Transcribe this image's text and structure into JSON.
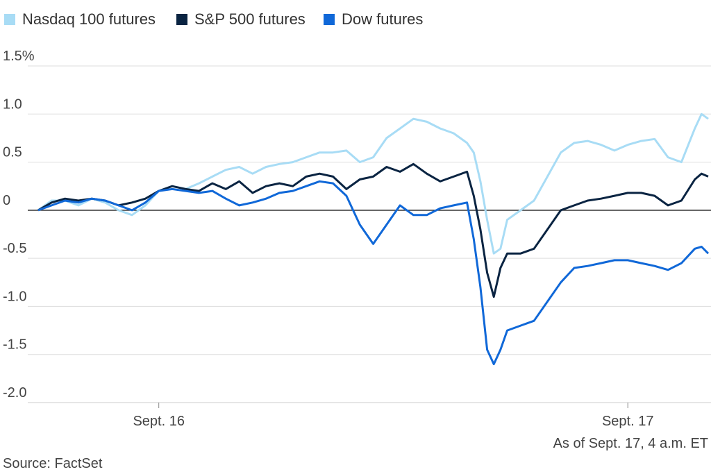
{
  "chart_data": {
    "type": "line",
    "title": "",
    "xlabel": "",
    "ylabel": "",
    "ylim": [
      -2.0,
      1.5
    ],
    "y_ticks": [
      {
        "value": 1.5,
        "label": "1.5%"
      },
      {
        "value": 1.0,
        "label": "1.0"
      },
      {
        "value": 0.5,
        "label": "0.5"
      },
      {
        "value": 0,
        "label": "0"
      },
      {
        "value": -0.5,
        "label": "-0.5"
      },
      {
        "value": -1.0,
        "label": "-1.0"
      },
      {
        "value": -1.5,
        "label": "-1.5"
      },
      {
        "value": -2.0,
        "label": "-2.0"
      }
    ],
    "xlim": [
      0,
      100
    ],
    "x_ticks": [
      {
        "value": 18,
        "label": "Sept. 16"
      },
      {
        "value": 88,
        "label": "Sept. 17"
      }
    ],
    "grid": true,
    "legend_position": "top-left",
    "x": [
      0,
      2,
      4,
      6,
      8,
      10,
      12,
      14,
      16,
      18,
      20,
      22,
      24,
      26,
      28,
      30,
      32,
      34,
      36,
      38,
      40,
      42,
      44,
      46,
      48,
      50,
      52,
      54,
      56,
      58,
      60,
      62,
      64,
      65,
      66,
      67,
      68,
      69,
      70,
      72,
      74,
      76,
      78,
      80,
      82,
      84,
      86,
      88,
      90,
      92,
      94,
      96,
      98,
      99,
      100
    ],
    "series": [
      {
        "name": "Nasdaq 100 futures",
        "color": "#a8dcf5",
        "values": [
          0.0,
          0.1,
          0.1,
          0.05,
          0.12,
          0.08,
          0.0,
          -0.05,
          0.05,
          0.2,
          0.25,
          0.22,
          0.28,
          0.35,
          0.42,
          0.45,
          0.38,
          0.45,
          0.48,
          0.5,
          0.55,
          0.6,
          0.6,
          0.62,
          0.5,
          0.55,
          0.75,
          0.85,
          0.95,
          0.92,
          0.85,
          0.8,
          0.7,
          0.6,
          0.3,
          -0.1,
          -0.45,
          -0.4,
          -0.1,
          0.0,
          0.1,
          0.35,
          0.6,
          0.7,
          0.72,
          0.68,
          0.62,
          0.68,
          0.72,
          0.74,
          0.55,
          0.5,
          0.85,
          1.0,
          0.95
        ]
      },
      {
        "name": "S&P 500 futures",
        "color": "#0a2442",
        "values": [
          0.0,
          0.08,
          0.12,
          0.1,
          0.12,
          0.1,
          0.05,
          0.08,
          0.12,
          0.2,
          0.25,
          0.22,
          0.2,
          0.28,
          0.22,
          0.3,
          0.18,
          0.25,
          0.28,
          0.25,
          0.35,
          0.38,
          0.35,
          0.22,
          0.32,
          0.35,
          0.45,
          0.4,
          0.48,
          0.38,
          0.3,
          0.35,
          0.4,
          0.15,
          -0.2,
          -0.65,
          -0.9,
          -0.6,
          -0.45,
          -0.45,
          -0.4,
          -0.2,
          0.0,
          0.05,
          0.1,
          0.12,
          0.15,
          0.18,
          0.18,
          0.15,
          0.05,
          0.1,
          0.32,
          0.38,
          0.35
        ]
      },
      {
        "name": "Dow futures",
        "color": "#1068d8",
        "values": [
          0.0,
          0.05,
          0.1,
          0.08,
          0.12,
          0.1,
          0.05,
          0.0,
          0.08,
          0.2,
          0.22,
          0.2,
          0.18,
          0.2,
          0.12,
          0.05,
          0.08,
          0.12,
          0.18,
          0.2,
          0.25,
          0.3,
          0.28,
          0.15,
          -0.15,
          -0.35,
          -0.15,
          0.05,
          -0.05,
          -0.05,
          0.02,
          0.05,
          0.08,
          -0.3,
          -0.8,
          -1.45,
          -1.6,
          -1.45,
          -1.25,
          -1.2,
          -1.15,
          -0.95,
          -0.75,
          -0.6,
          -0.58,
          -0.55,
          -0.52,
          -0.52,
          -0.55,
          -0.58,
          -0.62,
          -0.55,
          -0.4,
          -0.38,
          -0.45
        ]
      }
    ],
    "zero_line": true,
    "annotation": "As of Sept. 17, 4 a.m. ET",
    "source": "Source: FactSet"
  }
}
